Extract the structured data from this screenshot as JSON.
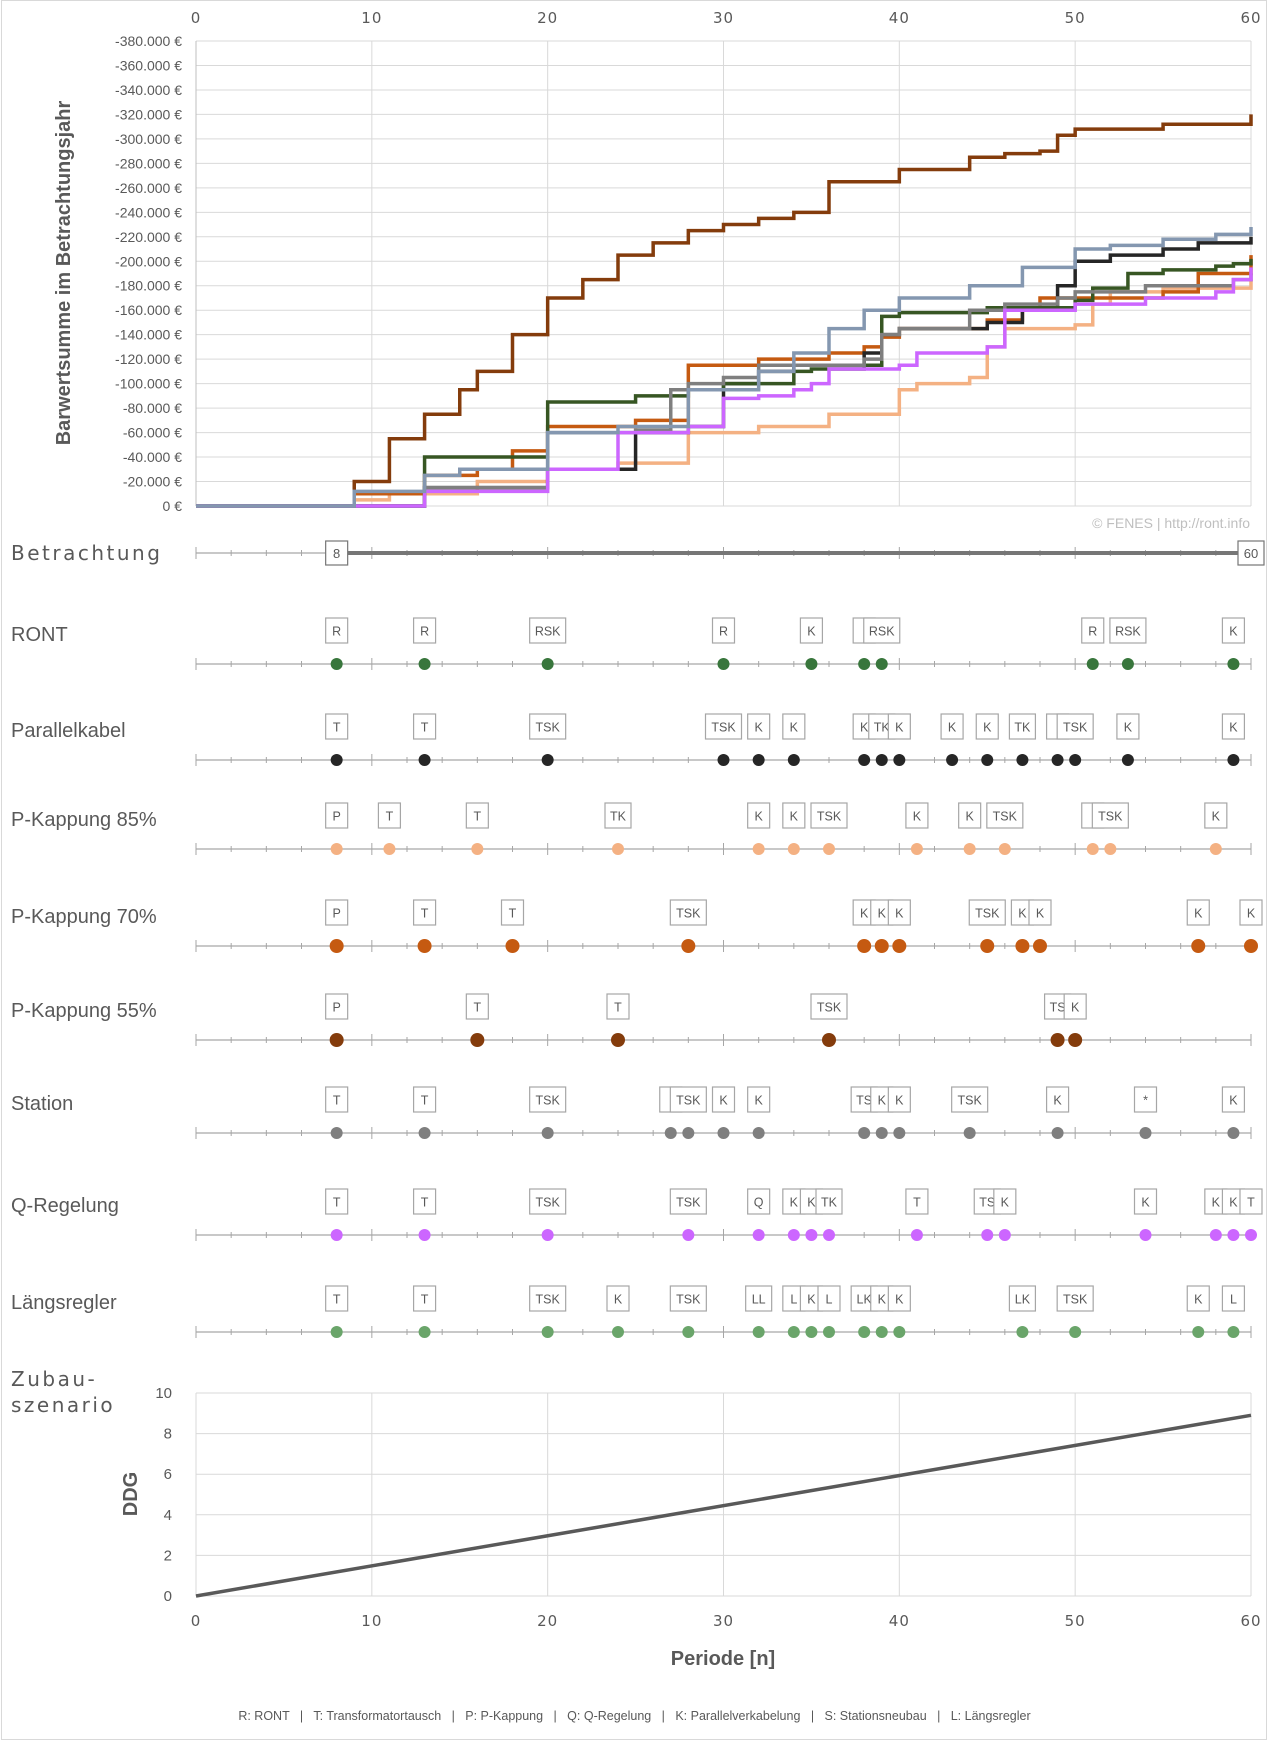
{
  "chart_data": [
    {
      "type": "line",
      "ylabel": "Barwertsumme im Betrachtungsjahr",
      "xlim": [
        0,
        60
      ],
      "ylim": [
        0,
        -380000
      ],
      "x_ticks": [
        "0",
        "10",
        "20",
        "30",
        "40",
        "50",
        "60"
      ],
      "y_ticks": [
        "0 €",
        "-20.000 €",
        "-40.000 €",
        "-60.000 €",
        "-80.000 €",
        "-100.000 €",
        "-120.000 €",
        "-140.000 €",
        "-160.000 €",
        "-180.000 €",
        "-200.000 €",
        "-220.000 €",
        "-240.000 €",
        "-260.000 €",
        "-280.000 €",
        "-300.000 €",
        "-320.000 €",
        "-340.000 €",
        "-360.000 €",
        "-380.000 €"
      ],
      "watermark": "© FENES | http://ront.info",
      "grid": true,
      "series": [
        {
          "color": "#f4b183",
          "x": [
            0,
            8,
            9,
            11,
            16,
            20,
            24,
            28,
            32,
            36,
            40,
            41,
            44,
            45,
            46,
            50,
            51,
            52,
            55,
            60
          ],
          "y": [
            0,
            0,
            -5000,
            -10000,
            -20000,
            -30000,
            -35000,
            -60000,
            -65000,
            -75000,
            -95000,
            -100000,
            -105000,
            -130000,
            -145000,
            -148000,
            -165000,
            -175000,
            -178000,
            -185000
          ]
        },
        {
          "color": "#c55a11",
          "x": [
            0,
            8,
            9,
            13,
            16,
            18,
            20,
            25,
            28,
            32,
            36,
            38,
            39,
            40,
            45,
            47,
            48,
            55,
            57,
            60
          ],
          "y": [
            0,
            0,
            -10000,
            -25000,
            -30000,
            -45000,
            -65000,
            -70000,
            -115000,
            -120000,
            -125000,
            -130000,
            -138000,
            -145000,
            -152000,
            -160000,
            -170000,
            -175000,
            -190000,
            -205000
          ]
        },
        {
          "color": "#843c0c",
          "x": [
            0,
            8,
            9,
            11,
            13,
            15,
            16,
            18,
            20,
            22,
            24,
            26,
            28,
            30,
            32,
            34,
            36,
            40,
            44,
            46,
            48,
            49,
            50,
            55,
            60
          ],
          "y": [
            0,
            0,
            -20000,
            -55000,
            -75000,
            -95000,
            -110000,
            -140000,
            -170000,
            -185000,
            -205000,
            -215000,
            -225000,
            -230000,
            -235000,
            -240000,
            -265000,
            -275000,
            -285000,
            -288000,
            -290000,
            -303000,
            -308000,
            -312000,
            -320000
          ]
        },
        {
          "color": "#262626",
          "x": [
            0,
            8,
            13,
            20,
            25,
            28,
            30,
            32,
            34,
            38,
            39,
            40,
            45,
            47,
            49,
            50,
            52,
            55,
            57,
            60
          ],
          "y": [
            0,
            0,
            -15000,
            -30000,
            -60000,
            -65000,
            -100000,
            -110000,
            -115000,
            -125000,
            -140000,
            -145000,
            -150000,
            -160000,
            -180000,
            -200000,
            -205000,
            -210000,
            -215000,
            -220000
          ]
        },
        {
          "color": "#375623",
          "x": [
            0,
            8,
            13,
            20,
            25,
            28,
            30,
            34,
            35,
            38,
            39,
            40,
            45,
            50,
            51,
            53,
            55,
            58,
            59,
            60
          ],
          "y": [
            0,
            0,
            -40000,
            -85000,
            -90000,
            -95000,
            -100000,
            -110000,
            -112000,
            -115000,
            -155000,
            -158000,
            -162000,
            -168000,
            -178000,
            -190000,
            -193000,
            -196000,
            -198000,
            -202000
          ]
        },
        {
          "color": "#7f7f7f",
          "x": [
            0,
            8,
            13,
            20,
            25,
            27,
            28,
            30,
            32,
            38,
            39,
            40,
            44,
            46,
            49,
            50,
            54,
            59,
            60
          ],
          "y": [
            0,
            0,
            -15000,
            -60000,
            -62000,
            -95000,
            -100000,
            -105000,
            -115000,
            -120000,
            -140000,
            -145000,
            -160000,
            -165000,
            -170000,
            -175000,
            -180000,
            -185000,
            -190000
          ]
        },
        {
          "color": "#cc66ff",
          "x": [
            0,
            8,
            13,
            20,
            24,
            28,
            30,
            32,
            34,
            35,
            36,
            40,
            41,
            45,
            46,
            50,
            54,
            58,
            59,
            60
          ],
          "y": [
            0,
            0,
            -12000,
            -30000,
            -60000,
            -65000,
            -88000,
            -90000,
            -95000,
            -100000,
            -112000,
            -115000,
            -125000,
            -130000,
            -160000,
            -165000,
            -170000,
            -175000,
            -185000,
            -195000
          ]
        },
        {
          "color": "#8497b0",
          "x": [
            0,
            8,
            9,
            13,
            15,
            20,
            24,
            28,
            32,
            34,
            36,
            38,
            40,
            44,
            47,
            50,
            52,
            55,
            58,
            60
          ],
          "y": [
            0,
            0,
            -12000,
            -25000,
            -30000,
            -60000,
            -65000,
            -95000,
            -110000,
            -125000,
            -145000,
            -160000,
            -170000,
            -180000,
            -195000,
            -210000,
            -213000,
            -218000,
            -222000,
            -228000
          ]
        }
      ]
    },
    {
      "type": "scatter",
      "x_range_label": "Betrachtung",
      "range_start": 8,
      "range_end": 60,
      "range_start_label": "8",
      "range_end_label": "60",
      "rows": [
        {
          "name": "RONT",
          "color": "#38763c",
          "events": [
            [
              8,
              "R"
            ],
            [
              13,
              "R"
            ],
            [
              20,
              "RSK"
            ],
            [
              30,
              "R"
            ],
            [
              35,
              "K"
            ],
            [
              38,
              ""
            ],
            [
              39,
              "RSK"
            ],
            [
              51,
              "R"
            ],
            [
              53,
              "RSK"
            ],
            [
              59,
              "K"
            ]
          ]
        },
        {
          "name": "Parallelkabel",
          "color": "#262626",
          "events": [
            [
              8,
              "T"
            ],
            [
              13,
              "T"
            ],
            [
              20,
              "TSK"
            ],
            [
              30,
              "TSK"
            ],
            [
              32,
              "K"
            ],
            [
              34,
              "K"
            ],
            [
              38,
              "K"
            ],
            [
              39,
              "TK"
            ],
            [
              40,
              "K"
            ],
            [
              43,
              "K"
            ],
            [
              45,
              "K"
            ],
            [
              47,
              "TK"
            ],
            [
              49,
              ""
            ],
            [
              50,
              "TSK"
            ],
            [
              53,
              "K"
            ],
            [
              59,
              "K"
            ]
          ]
        },
        {
          "name": "P-Kappung 85%",
          "color": "#f4b183",
          "events": [
            [
              8,
              "P"
            ],
            [
              11,
              "T"
            ],
            [
              16,
              "T"
            ],
            [
              24,
              "TK"
            ],
            [
              32,
              "K"
            ],
            [
              34,
              "K"
            ],
            [
              36,
              "TSK"
            ],
            [
              41,
              "K"
            ],
            [
              44,
              "K"
            ],
            [
              46,
              "TSK"
            ],
            [
              51,
              ""
            ],
            [
              52,
              "TSK"
            ],
            [
              58,
              "K"
            ]
          ]
        },
        {
          "name": "P-Kappung 70%",
          "color": "#c55a11",
          "events": [
            [
              8,
              "P"
            ],
            [
              13,
              "T"
            ],
            [
              18,
              "T"
            ],
            [
              28,
              "TSK"
            ],
            [
              38,
              "K"
            ],
            [
              39,
              "K"
            ],
            [
              40,
              "K"
            ],
            [
              45,
              "TSK"
            ],
            [
              47,
              "K"
            ],
            [
              48,
              "K"
            ],
            [
              57,
              "K"
            ],
            [
              60,
              "K"
            ]
          ]
        },
        {
          "name": "P-Kappung 55%",
          "color": "#843c0c",
          "events": [
            [
              8,
              "P"
            ],
            [
              16,
              "T"
            ],
            [
              24,
              "T"
            ],
            [
              36,
              "TSK"
            ],
            [
              49,
              "TS"
            ],
            [
              50,
              "K"
            ]
          ]
        },
        {
          "name": "Station",
          "color": "#7f7f7f",
          "events": [
            [
              8,
              "T"
            ],
            [
              13,
              "T"
            ],
            [
              20,
              "TSK"
            ],
            [
              27,
              ""
            ],
            [
              28,
              "TSK"
            ],
            [
              30,
              "K"
            ],
            [
              32,
              "K"
            ],
            [
              38,
              "TS"
            ],
            [
              39,
              "K"
            ],
            [
              40,
              "K"
            ],
            [
              44,
              "TSK"
            ],
            [
              49,
              "K"
            ],
            [
              54,
              "*"
            ],
            [
              59,
              "K"
            ]
          ]
        },
        {
          "name": "Q-Regelung",
          "color": "#cc66ff",
          "events": [
            [
              8,
              "T"
            ],
            [
              13,
              "T"
            ],
            [
              20,
              "TSK"
            ],
            [
              28,
              "TSK"
            ],
            [
              32,
              "Q"
            ],
            [
              34,
              "K"
            ],
            [
              35,
              "K"
            ],
            [
              36,
              "TK"
            ],
            [
              41,
              "T"
            ],
            [
              45,
              "TS"
            ],
            [
              46,
              "K"
            ],
            [
              54,
              "K"
            ],
            [
              58,
              "K"
            ],
            [
              59,
              "K"
            ],
            [
              60,
              "T"
            ]
          ]
        },
        {
          "name": "Längsregler",
          "color": "#6aa56a",
          "events": [
            [
              8,
              "T"
            ],
            [
              13,
              "T"
            ],
            [
              20,
              "TSK"
            ],
            [
              24,
              "K"
            ],
            [
              28,
              "TSK"
            ],
            [
              32,
              "LL"
            ],
            [
              34,
              "L"
            ],
            [
              35,
              "K"
            ],
            [
              36,
              "L"
            ],
            [
              38,
              "LK"
            ],
            [
              39,
              "K"
            ],
            [
              40,
              "K"
            ],
            [
              47,
              "LK"
            ],
            [
              50,
              "TSK"
            ],
            [
              57,
              "K"
            ],
            [
              59,
              "L"
            ]
          ]
        }
      ]
    },
    {
      "type": "line",
      "title_left": [
        "Zubau-",
        "szenario"
      ],
      "xlabel": "Periode [n]",
      "ylabel": "DDG",
      "xlim": [
        0,
        60
      ],
      "ylim": [
        0,
        10
      ],
      "x_ticks": [
        "0",
        "10",
        "20",
        "30",
        "40",
        "50",
        "60"
      ],
      "y_ticks": [
        "0",
        "2",
        "4",
        "6",
        "8",
        "10"
      ],
      "grid": true,
      "series": [
        {
          "color": "#595959",
          "x": [
            0,
            60
          ],
          "y": [
            0,
            8.9
          ]
        }
      ]
    }
  ],
  "footer_legend": "R: RONT   |   T: Transformatortausch   |   P: P-Kappung   |   Q: Q-Regelung   |   K: Parallelverkabelung   |   S: Stationsneubau   |   L: Längsregler"
}
